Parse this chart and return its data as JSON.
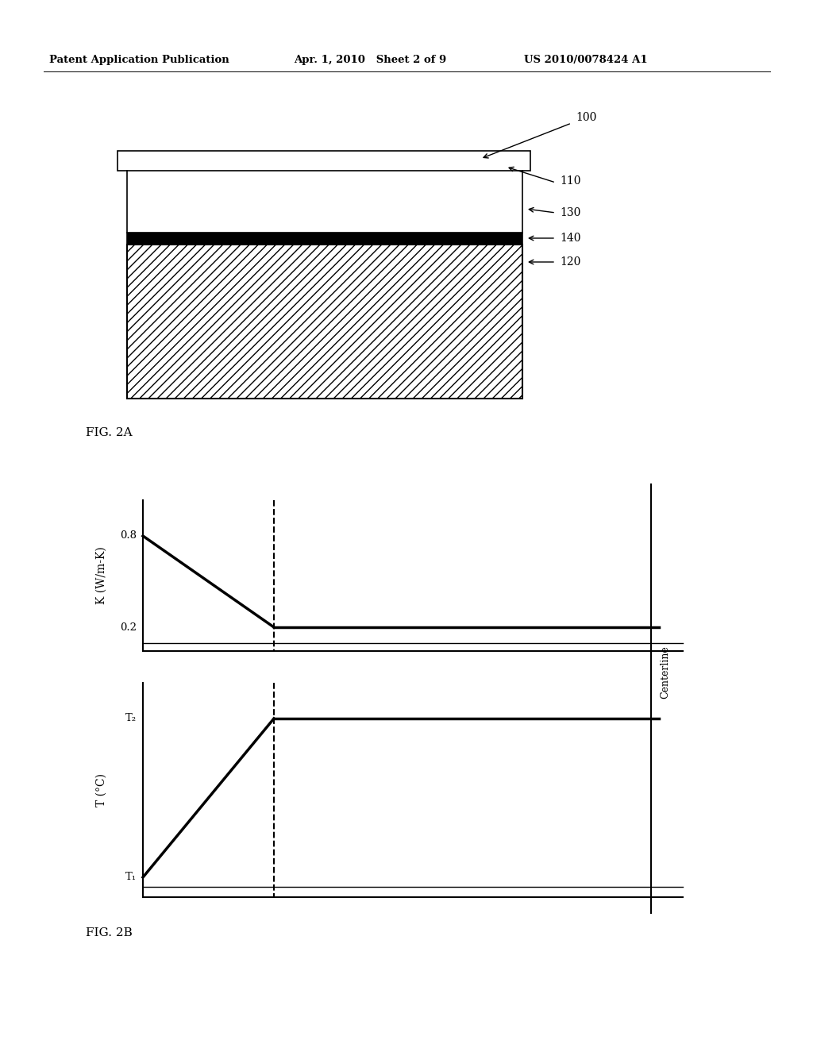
{
  "bg_color": "#ffffff",
  "header_left": "Patent Application Publication",
  "header_mid": "Apr. 1, 2010   Sheet 2 of 9",
  "header_right": "US 2010/0078424 A1",
  "fig2a_label": "FIG. 2A",
  "fig2b_label": "FIG. 2B",
  "ref_100": "100",
  "ref_110": "110",
  "ref_120": "120",
  "ref_130": "130",
  "ref_140": "140",
  "centerline_label": "Centerline",
  "k_ylabel": "K (W/m-K)",
  "t_ylabel": "T (°C)",
  "k_08": "0.8",
  "k_02": "0.2",
  "t1_label": "T₁",
  "t2_label": "T₂"
}
